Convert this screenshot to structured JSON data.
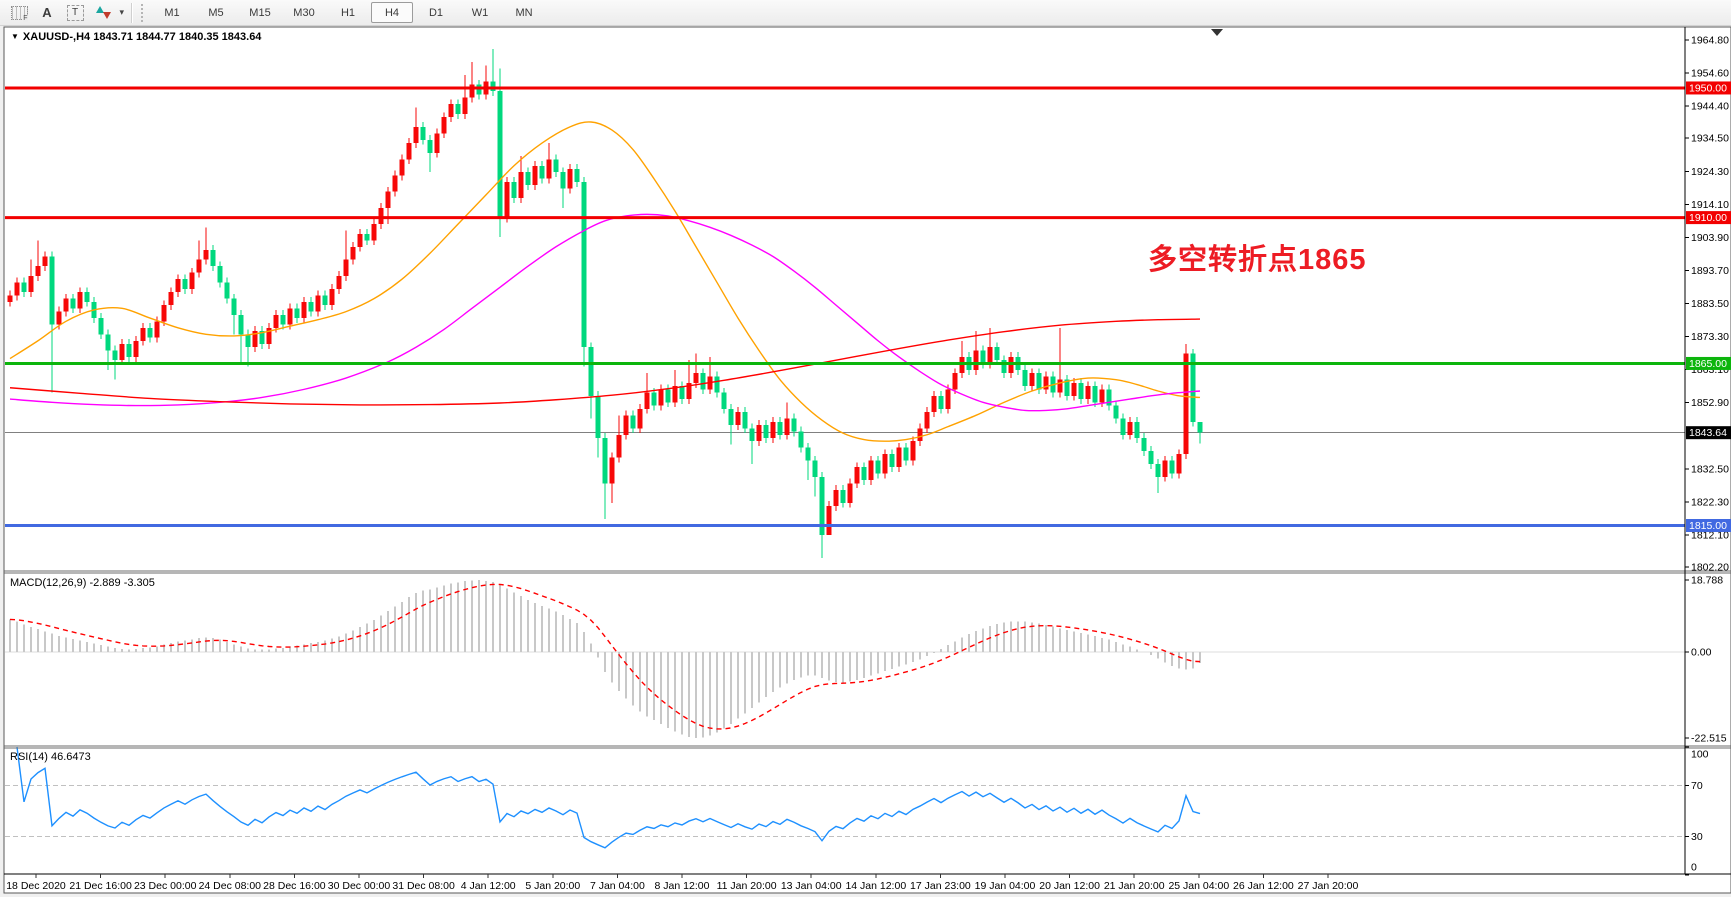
{
  "toolbar": {
    "grid_icon_letter": "F",
    "text_tool_label": "A",
    "label_tool_label": "T",
    "timeframes": [
      "M1",
      "M5",
      "M15",
      "M30",
      "H1",
      "H4",
      "D1",
      "W1",
      "MN"
    ],
    "active_timeframe": "H4"
  },
  "chart": {
    "title": "XAUUSD-,H4  1843.71 1844.77 1840.35 1843.64",
    "macd_label": "MACD(12,26,9) -2.889 -3.305",
    "rsi_label": "RSI(14) 46.6473",
    "annotation": {
      "text": "多空转折点1865",
      "color": "#ed1c24"
    }
  },
  "chart_data": {
    "type": "candlestick",
    "symbol": "XAUUSD",
    "timeframe": "H4",
    "title": "XAUUSD-,H4",
    "ohlc_current": {
      "open": 1843.71,
      "high": 1844.77,
      "low": 1840.35,
      "close": 1843.64
    },
    "colors": {
      "bull": "#f70808",
      "bear": "#00d87e",
      "level_red": "#f20000",
      "level_green": "#0cb50c",
      "level_blue": "#4169e1",
      "current_line": "#808080",
      "current_label_bg": "#000000",
      "ma_fast": "#ffa200",
      "ma_mid": "#ff00ff",
      "ma_slow": "#ff0000",
      "macd_hist": "#c8c8c8",
      "macd_signal": "#ff0000",
      "rsi_line": "#1e90ff"
    },
    "price_axis_ticks": [
      1964.8,
      1954.6,
      1944.4,
      1934.5,
      1924.3,
      1914.1,
      1903.9,
      1893.7,
      1883.5,
      1873.3,
      1863.1,
      1852.9,
      1832.5,
      1822.3,
      1812.1,
      1802.2
    ],
    "price_range": [
      1802.2,
      1969.0
    ],
    "levels": [
      {
        "price": 1950.0,
        "label": "1950.00",
        "color": "#f20000"
      },
      {
        "price": 1910.0,
        "label": "1910.00",
        "color": "#f20000"
      },
      {
        "price": 1865.0,
        "label": "1865.00",
        "color": "#0cb50c"
      },
      {
        "price": 1815.0,
        "label": "1815.00",
        "color": "#4169e1"
      }
    ],
    "current_price": {
      "value": 1843.64,
      "label": "1843.64"
    },
    "time_labels": [
      "18 Dec 2020",
      "21 Dec 16:00",
      "23 Dec 00:00",
      "24 Dec 08:00",
      "28 Dec 16:00",
      "30 Dec 00:00",
      "31 Dec 08:00",
      "4 Jan 12:00",
      "5 Jan 20:00",
      "7 Jan 04:00",
      "8 Jan 12:00",
      "11 Jan 20:00",
      "13 Jan 04:00",
      "14 Jan 12:00",
      "17 Jan 23:00",
      "19 Jan 04:00",
      "20 Jan 12:00",
      "21 Jan 20:00",
      "25 Jan 04:00",
      "26 Jan 12:00",
      "27 Jan 20:00"
    ],
    "candles": {
      "first_open": 1884,
      "closes": [
        1886,
        1890,
        1887,
        1892,
        1895,
        1898,
        1877,
        1881,
        1885,
        1882,
        1887,
        1884,
        1879,
        1874,
        1869,
        1866,
        1871,
        1867,
        1872,
        1876,
        1873,
        1878,
        1883,
        1887,
        1891,
        1888,
        1893,
        1897,
        1900,
        1895,
        1890,
        1885,
        1880,
        1874,
        1870,
        1875,
        1871,
        1876,
        1880,
        1877,
        1882,
        1879,
        1884,
        1881,
        1886,
        1883,
        1888,
        1892,
        1897,
        1901,
        1905,
        1903,
        1908,
        1913,
        1918,
        1923,
        1928,
        1933,
        1938,
        1934,
        1930,
        1936,
        1941,
        1945,
        1942,
        1947,
        1951,
        1948,
        1952,
        1949,
        1910,
        1921,
        1916,
        1924,
        1920,
        1926,
        1922,
        1928,
        1924,
        1919,
        1925,
        1921,
        1870,
        1855,
        1842,
        1828,
        1836,
        1843,
        1849,
        1845,
        1851,
        1856,
        1852,
        1857,
        1853,
        1858,
        1854,
        1859,
        1862,
        1857,
        1861,
        1856,
        1851,
        1846,
        1850,
        1845,
        1841,
        1846,
        1842,
        1847,
        1843,
        1848,
        1844,
        1839,
        1835,
        1830,
        1812,
        1821,
        1826,
        1822,
        1828,
        1833,
        1829,
        1835,
        1831,
        1837,
        1833,
        1839,
        1835,
        1841,
        1845,
        1850,
        1855,
        1851,
        1857,
        1862,
        1867,
        1863,
        1869,
        1865,
        1870,
        1866,
        1862,
        1867,
        1863,
        1858,
        1862,
        1857,
        1861,
        1856,
        1860,
        1855,
        1859,
        1854,
        1858,
        1853,
        1857,
        1852,
        1848,
        1843,
        1847,
        1842,
        1838,
        1834,
        1830,
        1835,
        1831,
        1837,
        1868,
        1847,
        1843.64
      ],
      "default_wick": 1.5,
      "wick_overrides": {
        "3": [
          1897,
          null
        ],
        "4": [
          1903,
          null
        ],
        "6": [
          null,
          1856
        ],
        "14": [
          null,
          1863
        ],
        "15": [
          null,
          1860
        ],
        "27": [
          1903,
          null
        ],
        "28": [
          1907,
          null
        ],
        "32": [
          null,
          1874
        ],
        "33": [
          null,
          1865
        ],
        "34": [
          null,
          1864
        ],
        "48": [
          1906,
          null
        ],
        "54": [
          null,
          1908
        ],
        "58": [
          1944,
          null
        ],
        "60": [
          null,
          1924
        ],
        "65": [
          1954,
          null
        ],
        "66": [
          1958,
          null
        ],
        "68": [
          1957,
          null
        ],
        "69": [
          1962,
          null
        ],
        "70": [
          1956,
          1904
        ],
        "73": [
          1929,
          null
        ],
        "77": [
          1933,
          null
        ],
        "79": [
          null,
          1913
        ],
        "82": [
          null,
          1864
        ],
        "83": [
          null,
          1848
        ],
        "84": [
          null,
          1836
        ],
        "85": [
          null,
          1817
        ],
        "86": [
          null,
          1822
        ],
        "87": [
          1849,
          null
        ],
        "91": [
          1862,
          null
        ],
        "95": [
          1863,
          null
        ],
        "97": [
          1866,
          null
        ],
        "98": [
          1868,
          null
        ],
        "100": [
          1867,
          null
        ],
        "103": [
          null,
          1840
        ],
        "106": [
          null,
          1834
        ],
        "111": [
          1853,
          null
        ],
        "114": [
          null,
          1829
        ],
        "115": [
          null,
          1824
        ],
        "116": [
          null,
          1805
        ],
        "117": [
          null,
          1812
        ],
        "136": [
          1872,
          null
        ],
        "138": [
          1875,
          null
        ],
        "140": [
          1876,
          null
        ],
        "150": [
          1876,
          null
        ],
        "164": [
          null,
          1825
        ],
        "168": [
          1871,
          null
        ],
        "170": [
          1844.77,
          1840.35
        ]
      }
    },
    "ma_lines": [
      {
        "name": "ma-fast-orange",
        "color": "#ffa200",
        "points": [
          [
            0,
            1866.5
          ],
          [
            4,
            1872
          ],
          [
            8,
            1878
          ],
          [
            12,
            1881.5
          ],
          [
            16,
            1882
          ],
          [
            20,
            1879
          ],
          [
            24,
            1876
          ],
          [
            28,
            1874
          ],
          [
            32,
            1873.5
          ],
          [
            36,
            1874.5
          ],
          [
            40,
            1876.5
          ],
          [
            44,
            1878.5
          ],
          [
            48,
            1881
          ],
          [
            52,
            1885
          ],
          [
            56,
            1891
          ],
          [
            60,
            1899
          ],
          [
            64,
            1908
          ],
          [
            68,
            1917
          ],
          [
            72,
            1926
          ],
          [
            76,
            1933
          ],
          [
            80,
            1938
          ],
          [
            83,
            1939.5
          ],
          [
            86,
            1937
          ],
          [
            89,
            1931
          ],
          [
            92,
            1922
          ],
          [
            95,
            1912
          ],
          [
            98,
            1901
          ],
          [
            101,
            1890
          ],
          [
            104,
            1879
          ],
          [
            107,
            1869
          ],
          [
            110,
            1860
          ],
          [
            113,
            1853
          ],
          [
            116,
            1847.5
          ],
          [
            119,
            1843.5
          ],
          [
            122,
            1841.5
          ],
          [
            125,
            1841
          ],
          [
            128,
            1841.5
          ],
          [
            131,
            1843
          ],
          [
            134,
            1845.5
          ],
          [
            138,
            1849
          ],
          [
            142,
            1853
          ],
          [
            146,
            1856.5
          ],
          [
            150,
            1859
          ],
          [
            154,
            1860.5
          ],
          [
            158,
            1860
          ],
          [
            161,
            1858.5
          ],
          [
            164,
            1856.5
          ],
          [
            167,
            1855
          ],
          [
            170,
            1854.5
          ]
        ]
      },
      {
        "name": "ma-mid-magenta",
        "color": "#ff00ff",
        "points": [
          [
            0,
            1854
          ],
          [
            6,
            1853
          ],
          [
            12,
            1852.3
          ],
          [
            18,
            1852
          ],
          [
            24,
            1852.2
          ],
          [
            30,
            1853
          ],
          [
            36,
            1854.5
          ],
          [
            42,
            1857
          ],
          [
            48,
            1860.5
          ],
          [
            54,
            1865.5
          ],
          [
            58,
            1870
          ],
          [
            62,
            1875.5
          ],
          [
            66,
            1882
          ],
          [
            70,
            1888.5
          ],
          [
            74,
            1895
          ],
          [
            78,
            1901
          ],
          [
            82,
            1906
          ],
          [
            85,
            1909
          ],
          [
            88,
            1910.5
          ],
          [
            91,
            1911
          ],
          [
            94,
            1910.5
          ],
          [
            97,
            1909
          ],
          [
            100,
            1907
          ],
          [
            103,
            1904.5
          ],
          [
            106,
            1901.5
          ],
          [
            109,
            1898
          ],
          [
            112,
            1893.5
          ],
          [
            115,
            1888.5
          ],
          [
            118,
            1883
          ],
          [
            121,
            1877.5
          ],
          [
            124,
            1872
          ],
          [
            127,
            1867
          ],
          [
            130,
            1862.5
          ],
          [
            133,
            1858.5
          ],
          [
            136,
            1855.5
          ],
          [
            139,
            1853
          ],
          [
            142,
            1851.5
          ],
          [
            145,
            1850.5
          ],
          [
            148,
            1850.5
          ],
          [
            151,
            1851
          ],
          [
            154,
            1852
          ],
          [
            157,
            1853
          ],
          [
            160,
            1854
          ],
          [
            163,
            1855
          ],
          [
            166,
            1855.8
          ],
          [
            170,
            1856.5
          ]
        ]
      },
      {
        "name": "ma-slow-red",
        "color": "#ff0000",
        "points": [
          [
            0,
            1857.5
          ],
          [
            10,
            1855.8
          ],
          [
            20,
            1854.2
          ],
          [
            30,
            1853.2
          ],
          [
            40,
            1852.5
          ],
          [
            50,
            1852.2
          ],
          [
            60,
            1852.3
          ],
          [
            70,
            1852.8
          ],
          [
            78,
            1853.8
          ],
          [
            86,
            1855.2
          ],
          [
            94,
            1857.2
          ],
          [
            102,
            1859.8
          ],
          [
            110,
            1862.8
          ],
          [
            118,
            1866
          ],
          [
            126,
            1869.2
          ],
          [
            134,
            1872.2
          ],
          [
            142,
            1874.8
          ],
          [
            150,
            1876.8
          ],
          [
            158,
            1878
          ],
          [
            164,
            1878.5
          ],
          [
            170,
            1878.7
          ]
        ]
      }
    ],
    "macd": {
      "label": "MACD(12,26,9)",
      "values_text": "-2.889 -3.305",
      "macd_value": -2.889,
      "signal_value": -3.305,
      "signal_period": 9,
      "axis_ticks": [
        [
          18.788,
          "18.788"
        ],
        [
          0,
          "0.00"
        ],
        [
          -22.515,
          "-22.515"
        ]
      ],
      "range": [
        -22.515,
        18.788
      ],
      "histogram": [
        8.5,
        8.0,
        7.2,
        6.5,
        6.0,
        5.4,
        4.8,
        4.2,
        3.8,
        3.4,
        3.0,
        2.6,
        2.2,
        1.8,
        1.4,
        1.0,
        0.8,
        0.7,
        0.8,
        1.0,
        1.2,
        1.5,
        1.9,
        2.3,
        2.7,
        3.0,
        3.3,
        3.6,
        3.8,
        3.6,
        3.2,
        2.6,
        2.0,
        1.4,
        0.9,
        0.7,
        0.6,
        0.7,
        0.9,
        1.1,
        1.4,
        1.7,
        2.0,
        2.3,
        2.6,
        3.0,
        3.5,
        4.1,
        4.8,
        5.6,
        6.5,
        7.4,
        8.4,
        9.5,
        10.7,
        11.9,
        13.1,
        14.3,
        15.4,
        16.0,
        16.3,
        16.8,
        17.4,
        17.9,
        18.2,
        18.5,
        18.7,
        18.788,
        18.6,
        18.3,
        17.6,
        16.6,
        15.5,
        14.6,
        13.6,
        12.8,
        12.0,
        11.4,
        10.6,
        9.6,
        8.6,
        7.6,
        5.2,
        2.2,
        -1.4,
        -5.2,
        -8.0,
        -10.2,
        -12.2,
        -14.0,
        -15.6,
        -16.8,
        -17.8,
        -18.8,
        -19.8,
        -20.8,
        -21.6,
        -22.2,
        -22.515,
        -22.3,
        -21.8,
        -21.0,
        -20.0,
        -18.8,
        -17.4,
        -16.0,
        -14.6,
        -13.2,
        -11.8,
        -10.5,
        -9.3,
        -8.2,
        -7.3,
        -6.6,
        -6.2,
        -6.2,
        -6.8,
        -7.4,
        -7.8,
        -7.9,
        -7.7,
        -7.3,
        -6.8,
        -6.2,
        -5.6,
        -5.0,
        -4.4,
        -3.8,
        -3.2,
        -2.6,
        -1.9,
        -1.1,
        -0.2,
        0.8,
        1.8,
        2.8,
        3.8,
        4.7,
        5.5,
        6.2,
        6.8,
        7.3,
        7.7,
        7.9,
        8.0,
        7.9,
        7.7,
        7.4,
        7.0,
        6.6,
        6.2,
        5.8,
        5.4,
        5.0,
        4.6,
        4.2,
        3.7,
        3.2,
        2.6,
        2.0,
        1.4,
        0.7,
        0.0,
        -0.8,
        -1.7,
        -2.7,
        -3.6,
        -4.3,
        -4.6,
        -4.3,
        -2.889
      ]
    },
    "rsi": {
      "label": "RSI(14)",
      "period": 14,
      "value": 46.6473,
      "levels": [
        70,
        30
      ],
      "axis_ticks": [
        [
          100,
          "100"
        ],
        [
          70,
          "70"
        ],
        [
          30,
          "30"
        ],
        [
          0,
          "0"
        ]
      ],
      "range": [
        0,
        100
      ]
    }
  }
}
